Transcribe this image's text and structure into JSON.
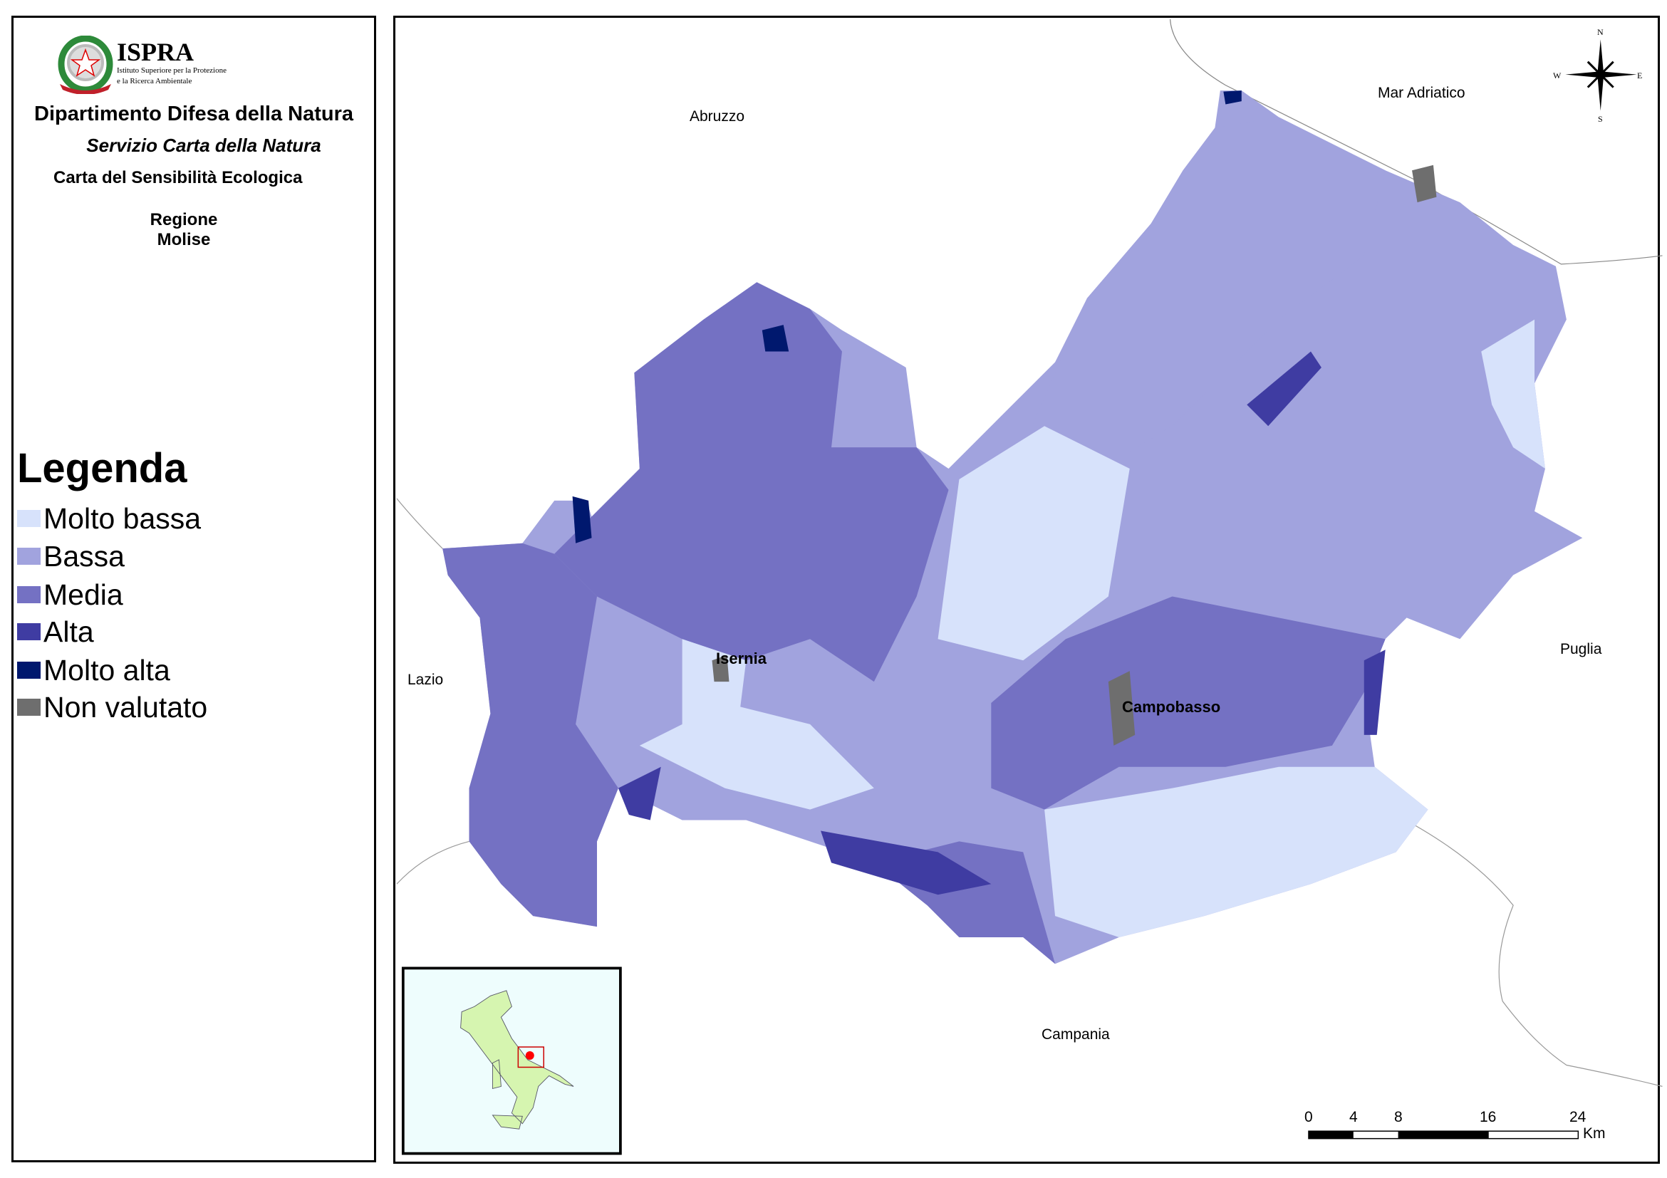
{
  "header": {
    "logo_title": "ISPRA",
    "logo_subtitle_1": "Istituto Superiore per la Protezione",
    "logo_subtitle_2": "e la Ricerca Ambientale",
    "department": "Dipartimento Difesa della Natura",
    "service": "Servizio Carta della Natura",
    "map_title": "Carta del Sensibilità Ecologica",
    "region_label": "Regione",
    "region_name": "Molise"
  },
  "legend": {
    "title": "Legenda",
    "items": [
      {
        "label": "Molto bassa",
        "color": "#d7e2fb"
      },
      {
        "label": "Bassa",
        "color": "#a1a3de"
      },
      {
        "label": "Media",
        "color": "#7471c3"
      },
      {
        "label": "Alta",
        "color": "#3f3ca2"
      },
      {
        "label": "Molto alta",
        "color": "#00186e"
      },
      {
        "label": "Non valutato",
        "color": "#6e6e6e"
      }
    ]
  },
  "map": {
    "neighbors": {
      "abruzzo": "Abruzzo",
      "mar_adriatico": "Mar Adriatico",
      "lazio": "Lazio",
      "puglia": "Puglia",
      "campania": "Campania"
    },
    "cities": {
      "isernia": "Isernia",
      "campobasso": "Campobasso"
    },
    "compass": {
      "n": "N",
      "s": "S",
      "e": "E",
      "w": "W"
    },
    "scale_bar": {
      "ticks": [
        "0",
        "4",
        "8",
        "16",
        "24"
      ],
      "unit": "Km"
    }
  },
  "inset": {
    "land_color": "#d6f5b0",
    "sea_color": "#eefdfd",
    "highlight_color": "#ff0000"
  }
}
